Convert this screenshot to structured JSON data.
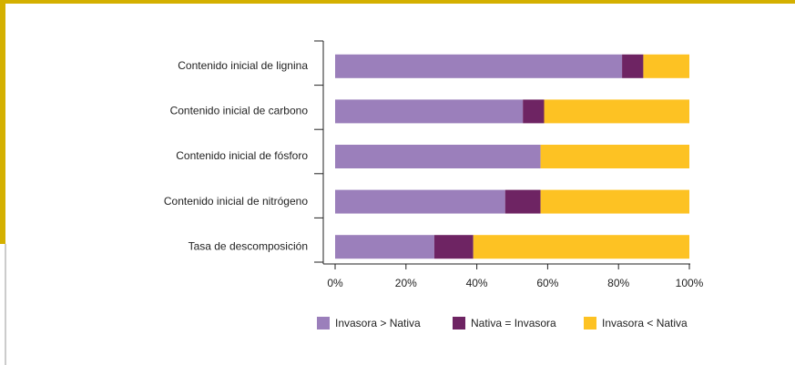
{
  "chart_data": {
    "type": "bar",
    "orientation": "horizontal",
    "stacked": true,
    "categories": [
      "Contenido inicial de lignina",
      "Contenido inicial de carbono",
      "Contenido inicial de fósforo",
      "Contenido inicial de nitrógeno",
      "Tasa de descomposición"
    ],
    "series": [
      {
        "name": "Invasora > Nativa",
        "color": "#9b7fbb",
        "values": [
          81,
          53,
          58,
          48,
          28
        ]
      },
      {
        "name": "Nativa = Invasora",
        "color": "#6e2463",
        "values": [
          6,
          6,
          0,
          10,
          11
        ]
      },
      {
        "name": "Invasora < Nativa",
        "color": "#fdc223",
        "values": [
          13,
          41,
          42,
          42,
          61
        ]
      }
    ],
    "xlim": [
      0,
      100
    ],
    "xticks": [
      {
        "value": 0,
        "label": "0%"
      },
      {
        "value": 20,
        "label": "20%"
      },
      {
        "value": 40,
        "label": "40%"
      },
      {
        "value": 60,
        "label": "60%"
      },
      {
        "value": 80,
        "label": "80%"
      },
      {
        "value": 100,
        "label": "100%"
      }
    ],
    "legend": "bottom"
  }
}
